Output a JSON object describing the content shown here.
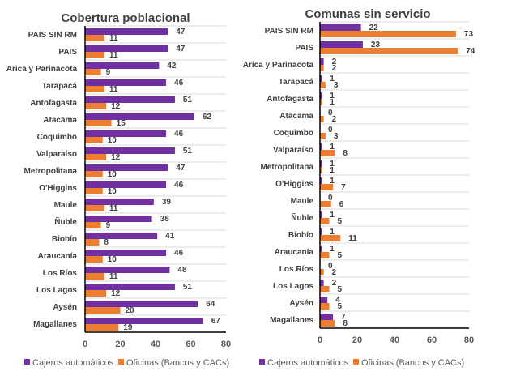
{
  "colors": {
    "cajeros": "#7030A0",
    "oficinas": "#ED7D31",
    "grid": "#D9D9D9",
    "axis": "#000000"
  },
  "chart_data": [
    {
      "type": "bar",
      "orientation": "horizontal",
      "title": "Cobertura poblacional",
      "xlabel": "",
      "ylabel": "",
      "xlim": [
        0,
        80
      ],
      "xticks": [
        0,
        20,
        40,
        60,
        80
      ],
      "grid": true,
      "legend": "bottom",
      "categories": [
        "PAIS SIN RM",
        "PAIS",
        "Arica y Parinacota",
        "Tarapacá",
        "Antofagasta",
        "Atacama",
        "Coquimbo",
        "Valparaíso",
        "Metropolitana",
        "O'Higgins",
        "Maule",
        "Ñuble",
        "Biobío",
        "Araucanía",
        "Los Ríos",
        "Los Lagos",
        "Aysén",
        "Magallanes"
      ],
      "series": [
        {
          "name": "Cajeros automáticos",
          "values": [
            47,
            47,
            42,
            46,
            51,
            62,
            46,
            51,
            47,
            46,
            39,
            38,
            41,
            46,
            48,
            51,
            64,
            67
          ]
        },
        {
          "name": "Oficinas (Bancos y CACs)",
          "values": [
            11,
            11,
            9,
            11,
            12,
            15,
            10,
            12,
            10,
            10,
            11,
            9,
            8,
            10,
            11,
            12,
            20,
            19
          ]
        }
      ]
    },
    {
      "type": "bar",
      "orientation": "horizontal",
      "title": "Comunas sin servicio",
      "xlabel": "",
      "ylabel": "",
      "xlim": [
        0,
        80
      ],
      "xticks": [
        0,
        20,
        40,
        60,
        80
      ],
      "grid": true,
      "legend": "bottom",
      "categories": [
        "PAIS SIN RM",
        "PAIS",
        "Arica y Parinacota",
        "Tarapacá",
        "Antofagasta",
        "Atacama",
        "Coquimbo",
        "Valparaíso",
        "Metropolitana",
        "O'Higgins",
        "Maule",
        "Ñuble",
        "Biobío",
        "Araucanía",
        "Los Ríos",
        "Los Lagos",
        "Aysén",
        "Magallanes"
      ],
      "series": [
        {
          "name": "Cajeros automáticos",
          "values": [
            22,
            23,
            2,
            1,
            1,
            0,
            0,
            1,
            1,
            1,
            0,
            1,
            1,
            1,
            0,
            2,
            4,
            7
          ]
        },
        {
          "name": "Oficinas (Bancos y CACs)",
          "values": [
            73,
            74,
            2,
            3,
            1,
            2,
            3,
            8,
            1,
            7,
            6,
            5,
            11,
            5,
            2,
            5,
            5,
            8
          ]
        }
      ]
    }
  ]
}
